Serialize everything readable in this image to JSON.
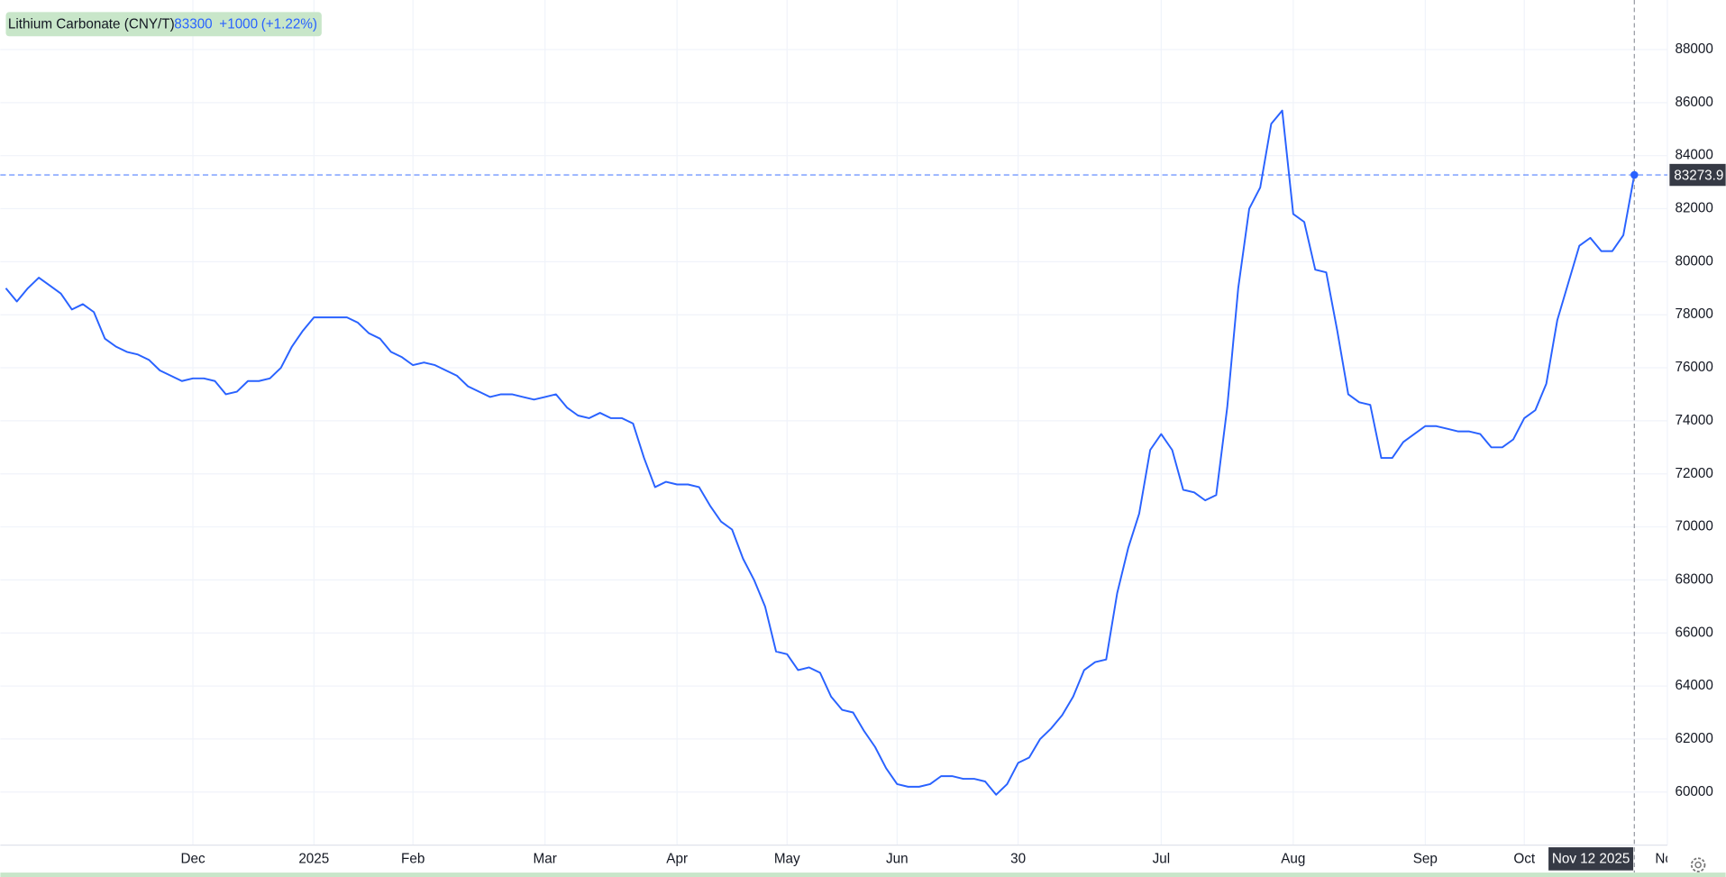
{
  "chart_data": {
    "type": "line",
    "series": [
      {
        "name": "Lithium Carbonate (CNY/T)",
        "color": "#2962ff",
        "values": [
          79000,
          78500,
          79000,
          79400,
          79100,
          78800,
          78200,
          78400,
          78100,
          77100,
          76800,
          76600,
          76500,
          76300,
          75900,
          75700,
          75500,
          75600,
          75600,
          75500,
          75000,
          75100,
          75500,
          75500,
          75600,
          76000,
          76800,
          77400,
          77900,
          77900,
          77900,
          77900,
          77700,
          77300,
          77100,
          76600,
          76400,
          76100,
          76200,
          76100,
          75900,
          75700,
          75300,
          75100,
          74900,
          75000,
          75000,
          74900,
          74800,
          74900,
          75000,
          74500,
          74200,
          74100,
          74300,
          74100,
          74100,
          73900,
          72600,
          71500,
          71700,
          71600,
          71600,
          71500,
          70800,
          70200,
          69900,
          68800,
          68000,
          67000,
          65300,
          65200,
          64600,
          64700,
          64500,
          63600,
          63100,
          63000,
          62300,
          61700,
          60900,
          60300,
          60200,
          60200,
          60300,
          60600,
          60600,
          60500,
          60500,
          60400,
          59900,
          60300,
          61100,
          61300,
          62000,
          62400,
          62900,
          63600,
          64600,
          64900,
          65000,
          67500,
          69200,
          70500,
          72900,
          73500,
          72900,
          71400,
          71300,
          71000,
          71200,
          74500,
          79000,
          82000,
          82800,
          85200,
          85700,
          81800,
          81500,
          79700,
          79600,
          77400,
          75000,
          74700,
          74600,
          72600,
          72600,
          73200,
          73500,
          73800,
          73800,
          73700,
          73600,
          73600,
          73500,
          73000,
          73000,
          73300,
          74100,
          74400,
          75400,
          77800,
          79200,
          80600,
          80900,
          80400,
          80400,
          81000,
          83273.9,
          null,
          null,
          null
        ]
      }
    ],
    "categories": [
      null,
      null,
      null,
      null,
      null,
      null,
      null,
      null,
      null,
      null,
      null,
      null,
      null,
      null,
      null,
      null,
      null,
      "Dec",
      null,
      null,
      null,
      null,
      null,
      null,
      null,
      null,
      null,
      null,
      "2025",
      null,
      null,
      null,
      null,
      null,
      null,
      null,
      null,
      "Feb",
      null,
      null,
      null,
      null,
      null,
      null,
      null,
      null,
      null,
      null,
      null,
      "Mar",
      null,
      null,
      null,
      null,
      null,
      null,
      null,
      null,
      null,
      null,
      null,
      "Apr",
      null,
      null,
      null,
      null,
      null,
      null,
      null,
      null,
      null,
      "May",
      null,
      null,
      null,
      null,
      null,
      null,
      null,
      null,
      null,
      "Jun",
      null,
      null,
      null,
      null,
      null,
      null,
      null,
      null,
      null,
      null,
      "30",
      null,
      null,
      null,
      null,
      null,
      null,
      null,
      null,
      null,
      null,
      null,
      null,
      "Jul",
      null,
      null,
      null,
      null,
      null,
      null,
      null,
      null,
      null,
      null,
      null,
      "Aug",
      null,
      null,
      null,
      null,
      null,
      null,
      null,
      null,
      null,
      null,
      null,
      "Sep",
      null,
      null,
      null,
      null,
      null,
      null,
      null,
      null,
      "Oct",
      null,
      null,
      null,
      null,
      null,
      null,
      null,
      null,
      null,
      "Nov 12 2025",
      null,
      null,
      "Nov"
    ],
    "quote": {
      "price": 83300,
      "change": {
        "value": 1000,
        "label": "+1000"
      },
      "change_percent": {
        "value": 1.22,
        "label": "(+1.22%)"
      }
    },
    "ylim": [
      58000,
      89870
    ],
    "yticks": [
      60000,
      62000,
      64000,
      66000,
      68000,
      70000,
      72000,
      74000,
      76000,
      78000,
      80000,
      82000,
      84000,
      86000,
      88000
    ],
    "grid": true,
    "crosshair": true
  }
}
